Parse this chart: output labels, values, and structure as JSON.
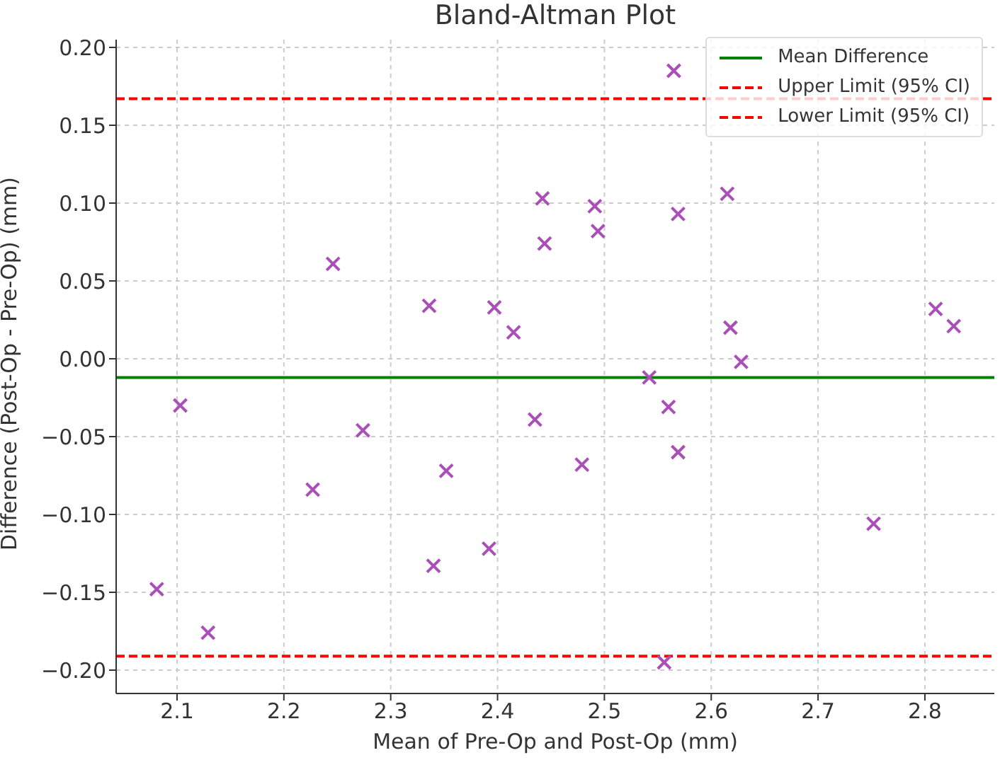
{
  "chart_data": {
    "type": "scatter",
    "title": "Bland-Altman Plot",
    "xlabel": "Mean of Pre-Op and Post-Op (mm)",
    "ylabel": "Difference (Post-Op - Pre-Op) (mm)",
    "x": [
      2.081,
      2.103,
      2.129,
      2.227,
      2.246,
      2.274,
      2.336,
      2.34,
      2.352,
      2.392,
      2.397,
      2.415,
      2.435,
      2.442,
      2.444,
      2.479,
      2.491,
      2.494,
      2.542,
      2.556,
      2.56,
      2.565,
      2.569,
      2.569,
      2.615,
      2.618,
      2.628,
      2.752,
      2.81,
      2.827
    ],
    "values": [
      -0.148,
      -0.03,
      -0.176,
      -0.084,
      0.061,
      -0.046,
      0.034,
      -0.133,
      -0.072,
      -0.122,
      0.033,
      0.017,
      -0.039,
      0.103,
      0.074,
      -0.068,
      0.098,
      0.082,
      -0.012,
      -0.195,
      -0.031,
      0.185,
      0.093,
      -0.06,
      0.106,
      0.02,
      -0.002,
      -0.106,
      0.032,
      0.021
    ],
    "color": "#ab4fb8",
    "marker": "cross",
    "xlim": [
      2.043,
      2.865
    ],
    "xticks": [
      2.1,
      2.2,
      2.3,
      2.4,
      2.5,
      2.6,
      2.7,
      2.8
    ],
    "ylim": [
      -0.215,
      0.205
    ],
    "yticks": [
      {
        "value": -0.2,
        "label": "−0.20"
      },
      {
        "value": -0.15,
        "label": "−0.15"
      },
      {
        "value": -0.1,
        "label": "−0.10"
      },
      {
        "value": -0.05,
        "label": "−0.05"
      },
      {
        "value": 0,
        "label": "0.00"
      },
      {
        "value": 0.05,
        "label": "0.05"
      },
      {
        "value": 0.1,
        "label": "0.10"
      },
      {
        "value": 0.15,
        "label": "0.15"
      },
      {
        "value": 0.2,
        "label": "0.20"
      }
    ],
    "ref_lines": [
      {
        "axis": "y",
        "value": -0.012,
        "label": "Mean Difference",
        "color": "#008000",
        "line_style": "solid"
      },
      {
        "axis": "y",
        "value": 0.167,
        "label": "Upper Limit (95% CI)",
        "color": "#ff0000",
        "line_style": "dashed"
      },
      {
        "axis": "y",
        "value": -0.191,
        "label": "Lower Limit (95% CI)",
        "color": "#ff0000",
        "line_style": "dashed"
      }
    ],
    "grid": true,
    "legend": "top right"
  }
}
